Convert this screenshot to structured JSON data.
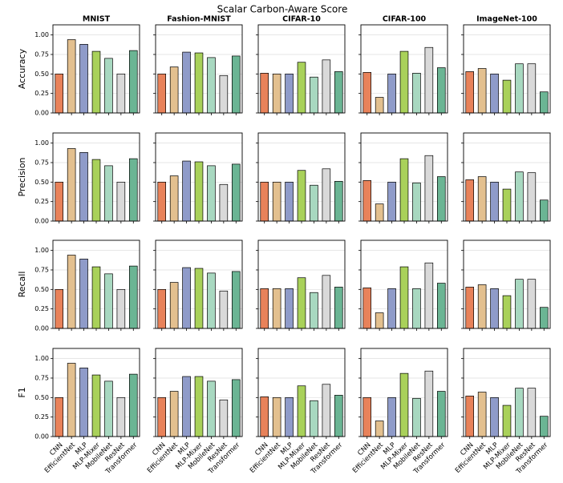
{
  "title": "Scalar Carbon-Aware Score",
  "chart_data": {
    "type": "bar",
    "categories": [
      "CNN",
      "EfficientNet",
      "MLP",
      "MLP-Mixer",
      "MobileNet",
      "ResNet",
      "Transformer"
    ],
    "colors": [
      "#e8825a",
      "#e3c08f",
      "#8f9bc9",
      "#a9d15a",
      "#a8d8c0",
      "#d9d9d9",
      "#6bb594"
    ],
    "ylim": [
      0,
      1.13
    ],
    "yticks": [
      {
        "value": 0,
        "label": "0.00"
      },
      {
        "value": 0.25,
        "label": "0.25"
      },
      {
        "value": 0.5,
        "label": "0.50"
      },
      {
        "value": 0.75,
        "label": "0.75"
      },
      {
        "value": 1,
        "label": "1.00"
      }
    ],
    "grid": true,
    "datasets": [
      "MNIST",
      "Fashion-MNIST",
      "CIFAR-10",
      "CIFAR-100",
      "ImageNet-100"
    ],
    "rows": [
      {
        "ylabel": "Accuracy",
        "panels": [
          [
            0.5,
            0.94,
            0.88,
            0.79,
            0.7,
            0.5,
            0.8
          ],
          [
            0.5,
            0.59,
            0.78,
            0.77,
            0.71,
            0.48,
            0.73
          ],
          [
            0.51,
            0.5,
            0.5,
            0.65,
            0.46,
            0.68,
            0.53
          ],
          [
            0.52,
            0.2,
            0.5,
            0.79,
            0.51,
            0.84,
            0.58
          ],
          [
            0.53,
            0.57,
            0.5,
            0.42,
            0.63,
            0.63,
            0.27
          ]
        ]
      },
      {
        "ylabel": "Precision",
        "panels": [
          [
            0.5,
            0.93,
            0.88,
            0.79,
            0.71,
            0.5,
            0.8
          ],
          [
            0.5,
            0.58,
            0.77,
            0.76,
            0.71,
            0.47,
            0.73
          ],
          [
            0.5,
            0.5,
            0.5,
            0.65,
            0.46,
            0.67,
            0.51
          ],
          [
            0.52,
            0.22,
            0.5,
            0.8,
            0.49,
            0.84,
            0.57
          ],
          [
            0.53,
            0.57,
            0.5,
            0.41,
            0.63,
            0.62,
            0.27
          ]
        ]
      },
      {
        "ylabel": "Recall",
        "panels": [
          [
            0.5,
            0.94,
            0.89,
            0.79,
            0.7,
            0.5,
            0.8
          ],
          [
            0.5,
            0.59,
            0.78,
            0.77,
            0.71,
            0.48,
            0.73
          ],
          [
            0.51,
            0.51,
            0.51,
            0.65,
            0.46,
            0.68,
            0.53
          ],
          [
            0.52,
            0.2,
            0.51,
            0.79,
            0.51,
            0.84,
            0.58
          ],
          [
            0.53,
            0.56,
            0.51,
            0.42,
            0.63,
            0.63,
            0.27
          ]
        ]
      },
      {
        "ylabel": "F1",
        "panels": [
          [
            0.5,
            0.94,
            0.88,
            0.79,
            0.71,
            0.5,
            0.8
          ],
          [
            0.5,
            0.58,
            0.77,
            0.77,
            0.71,
            0.47,
            0.73
          ],
          [
            0.51,
            0.5,
            0.5,
            0.65,
            0.46,
            0.67,
            0.53
          ],
          [
            0.5,
            0.2,
            0.5,
            0.81,
            0.49,
            0.84,
            0.58
          ],
          [
            0.52,
            0.57,
            0.5,
            0.4,
            0.62,
            0.62,
            0.26
          ]
        ]
      }
    ]
  }
}
